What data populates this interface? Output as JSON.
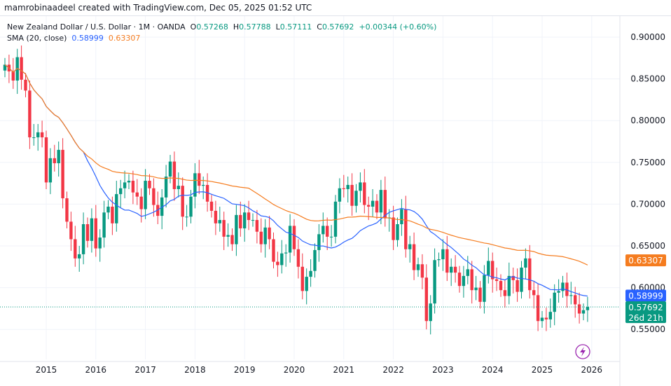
{
  "credit": "mamrobinaadeel created with TradingView.com, Dec 05, 2025 01:52 UTC",
  "legend": {
    "symbol": "New Zealand Dollar / U.S. Dollar · 1M · OANDA",
    "o_label": "O",
    "o": "0.57268",
    "h_label": "H",
    "h": "0.57788",
    "l_label": "L",
    "l": "0.57111",
    "c_label": "C",
    "c": "0.57692",
    "change": "+0.00344 (+0.60%)",
    "sma_label": "SMA (20, close)",
    "sma1": "0.58999",
    "sma2": "0.63307"
  },
  "price_badges": {
    "sma2": "0.63307",
    "sma1": "0.58999",
    "last": "0.57692",
    "countdown": "26d 21h"
  },
  "colors": {
    "up": "#089981",
    "down": "#f23645",
    "sma1": "#2962ff",
    "sma2": "#f57c1f"
  },
  "icons": {
    "bottom": "lightning-icon"
  },
  "chart_data": {
    "type": "candlestick",
    "interval": "1M",
    "ylim": [
      0.53,
      0.915
    ],
    "yticks": [
      "0.90000",
      "0.85000",
      "0.80000",
      "0.75000",
      "0.70000",
      "0.65000",
      "0.60000",
      "0.55000"
    ],
    "xticks": [
      "2015",
      "2016",
      "2017",
      "2018",
      "2019",
      "2020",
      "2021",
      "2022",
      "2023",
      "2024",
      "2025",
      "2026"
    ],
    "start": "2014-03",
    "grid": true,
    "closes": [
      0.867,
      0.859,
      0.848,
      0.876,
      0.849,
      0.836,
      0.78,
      0.78,
      0.786,
      0.78,
      0.726,
      0.755,
      0.749,
      0.765,
      0.707,
      0.679,
      0.658,
      0.635,
      0.64,
      0.676,
      0.656,
      0.683,
      0.647,
      0.66,
      0.69,
      0.697,
      0.677,
      0.712,
      0.719,
      0.726,
      0.728,
      0.714,
      0.709,
      0.694,
      0.728,
      0.719,
      0.699,
      0.686,
      0.708,
      0.733,
      0.751,
      0.718,
      0.722,
      0.685,
      0.685,
      0.709,
      0.737,
      0.722,
      0.723,
      0.703,
      0.692,
      0.677,
      0.681,
      0.661,
      0.663,
      0.652,
      0.687,
      0.671,
      0.69,
      0.681,
      0.681,
      0.667,
      0.652,
      0.672,
      0.658,
      0.631,
      0.627,
      0.641,
      0.642,
      0.674,
      0.646,
      0.625,
      0.596,
      0.613,
      0.62,
      0.645,
      0.664,
      0.674,
      0.661,
      0.661,
      0.703,
      0.719,
      0.718,
      0.723,
      0.698,
      0.716,
      0.726,
      0.699,
      0.697,
      0.704,
      0.69,
      0.717,
      0.683,
      0.684,
      0.657,
      0.676,
      0.694,
      0.646,
      0.652,
      0.621,
      0.628,
      0.612,
      0.56,
      0.581,
      0.633,
      0.634,
      0.646,
      0.618,
      0.625,
      0.618,
      0.602,
      0.614,
      0.622,
      0.597,
      0.6,
      0.583,
      0.615,
      0.632,
      0.61,
      0.608,
      0.597,
      0.59,
      0.614,
      0.609,
      0.595,
      0.624,
      0.635,
      0.597,
      0.591,
      0.56,
      0.564,
      0.562,
      0.571,
      0.594,
      0.596,
      0.606,
      0.59,
      0.591,
      0.58,
      0.569,
      0.573,
      0.57692
    ],
    "first_open": 0.86,
    "last_close": 0.57692
  }
}
